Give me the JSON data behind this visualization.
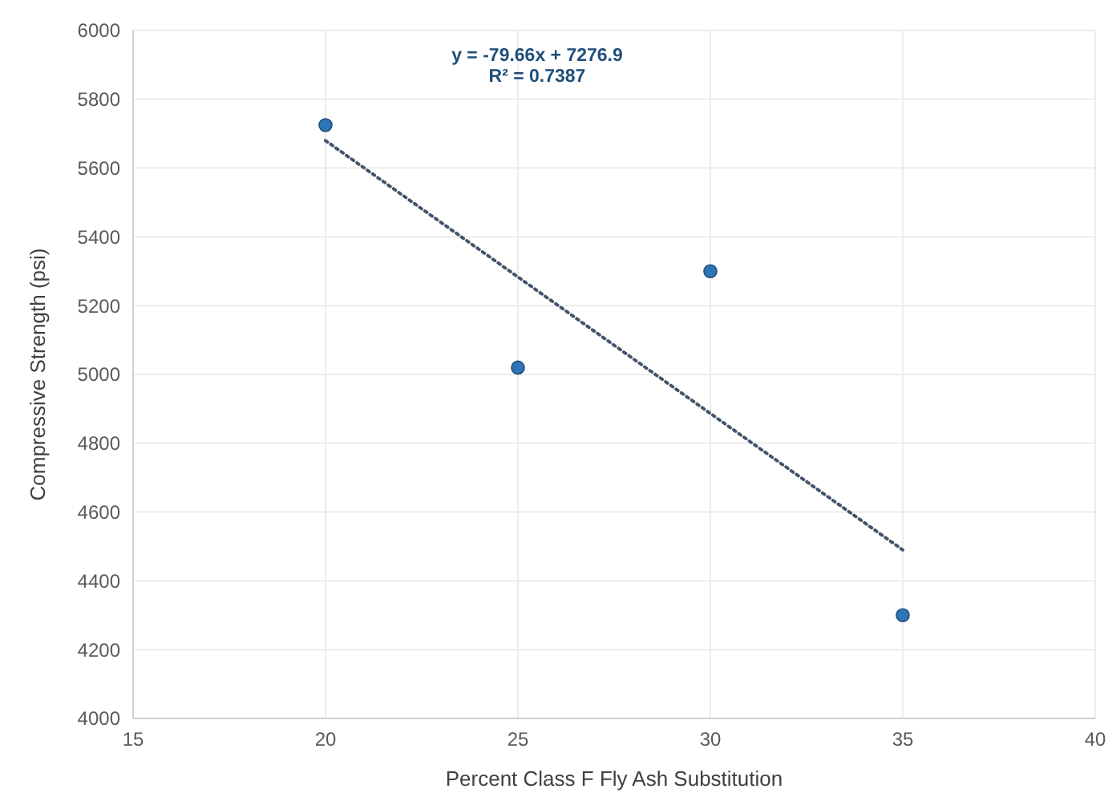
{
  "chart_data": {
    "type": "scatter",
    "xlabel": "Percent Class F Fly Ash Substitution",
    "ylabel": "Compressive Strength (psi)",
    "annotations": [
      "y = -79.66x + 7276.9",
      "R² = 0.7387"
    ],
    "x": [
      20,
      25,
      30,
      35
    ],
    "xlim": [
      15,
      40
    ],
    "xticks": [
      15,
      20,
      25,
      30,
      35,
      40
    ],
    "ylim": [
      4000,
      6000
    ],
    "yticks": [
      4000,
      4200,
      4400,
      4600,
      4800,
      5000,
      5200,
      5400,
      5600,
      5800,
      6000
    ],
    "grid": true,
    "marker": "circle",
    "series": [
      {
        "color": "#2e75b6",
        "values": [
          5725,
          5020,
          5300,
          4300
        ]
      },
      {
        "type": "line",
        "color": "#44546a",
        "line_style": "dotted",
        "marker": "none",
        "x": [
          20,
          35
        ],
        "values": [
          5680,
          4490
        ]
      }
    ]
  }
}
